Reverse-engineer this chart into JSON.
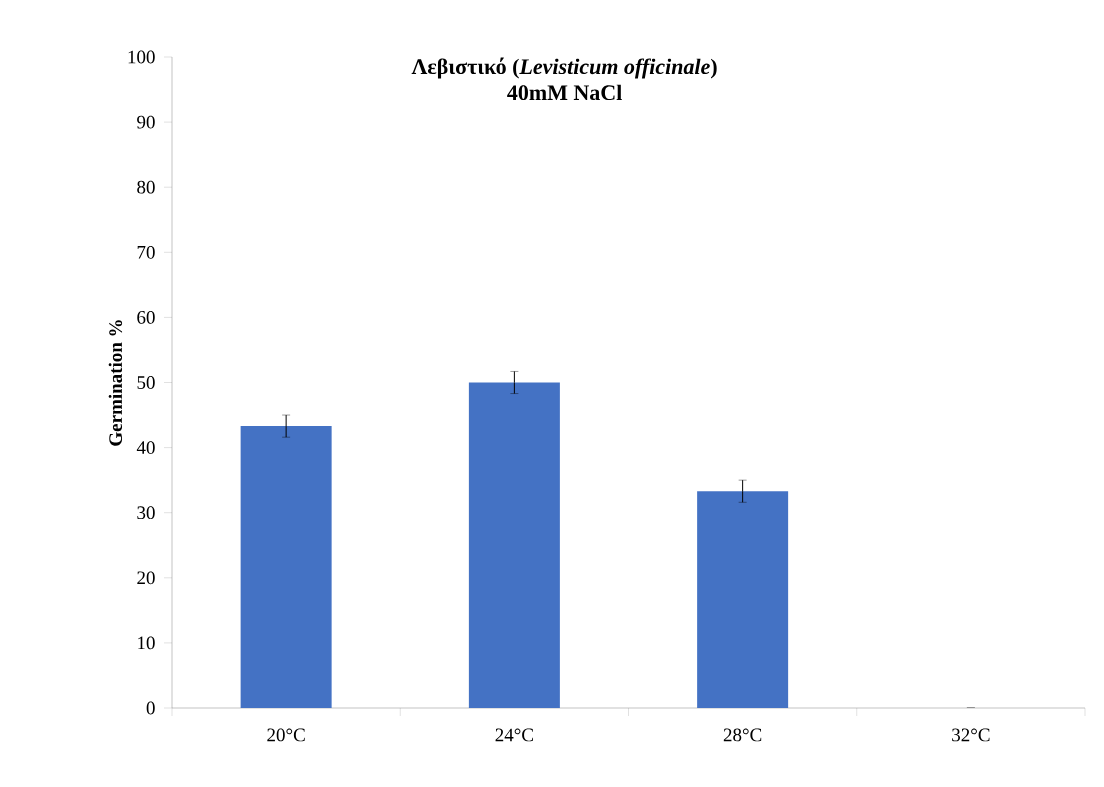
{
  "chart_data": {
    "type": "bar",
    "title": "Λεβιστικό (*Levisticum officinale*)",
    "subtitle": "40mM NaCl",
    "ylabel": "Germination %",
    "categories": [
      "20°C",
      "24°C",
      "28°C",
      "32°C"
    ],
    "values": [
      43.3,
      50,
      33.3,
      0
    ],
    "errors": [
      1.7,
      1.7,
      1.7,
      null
    ],
    "color": "#4472c4",
    "ylim": [
      0,
      100
    ],
    "yticks": [
      0,
      10,
      20,
      30,
      40,
      50,
      60,
      70,
      80,
      90,
      100
    ]
  }
}
